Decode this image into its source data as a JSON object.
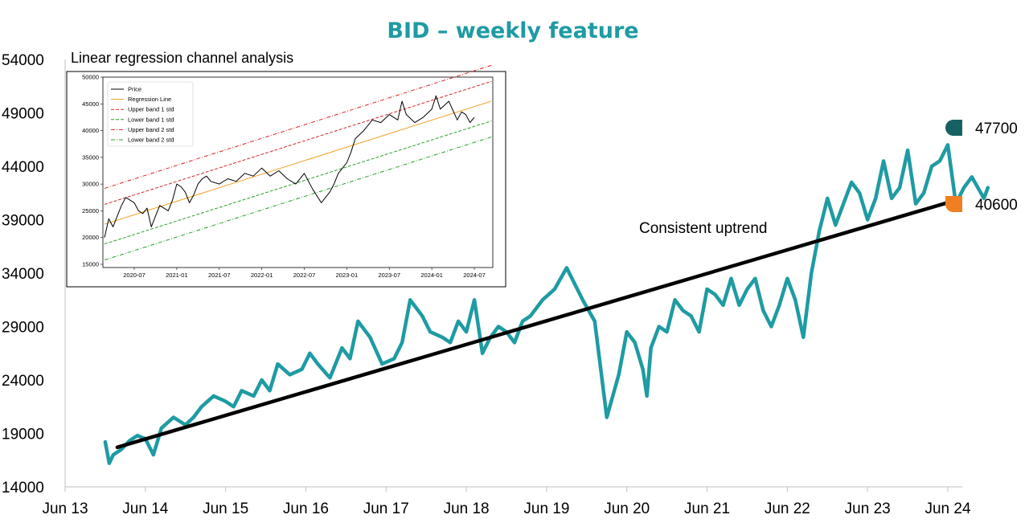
{
  "chart_data": {
    "type": "line",
    "title": "BID – weekly feature",
    "ylim": [
      14000,
      54000
    ],
    "y_ticks": [
      "54000",
      "49000",
      "44000",
      "39000",
      "34000",
      "29000",
      "24000",
      "19000",
      "14000"
    ],
    "x_ticks": [
      "Jun 13",
      "Jun 14",
      "Jun 15",
      "Jun 16",
      "Jun 17",
      "Jun 18",
      "Jun 19",
      "Jun 20",
      "Jun 21",
      "Jun 22",
      "Jun 23",
      "Jun 24"
    ],
    "series": [
      {
        "role": "price",
        "color": "#1e9ba3",
        "x": [
          2013.5,
          2013.55,
          2013.6,
          2013.7,
          2013.8,
          2013.9,
          2014.0,
          2014.1,
          2014.2,
          2014.35,
          2014.5,
          2014.6,
          2014.7,
          2014.85,
          2015.0,
          2015.1,
          2015.2,
          2015.35,
          2015.45,
          2015.55,
          2015.65,
          2015.8,
          2015.95,
          2016.05,
          2016.15,
          2016.3,
          2016.45,
          2016.55,
          2016.65,
          2016.8,
          2016.95,
          2017.1,
          2017.2,
          2017.3,
          2017.45,
          2017.55,
          2017.7,
          2017.8,
          2017.9,
          2018.0,
          2018.1,
          2018.2,
          2018.3,
          2018.4,
          2018.5,
          2018.6,
          2018.7,
          2018.8,
          2018.95,
          2019.1,
          2019.25,
          2019.35,
          2019.45,
          2019.6,
          2019.75,
          2019.9,
          2020.0,
          2020.1,
          2020.2,
          2020.25,
          2020.3,
          2020.4,
          2020.5,
          2020.6,
          2020.7,
          2020.8,
          2020.9,
          2021.0,
          2021.1,
          2021.2,
          2021.3,
          2021.4,
          2021.5,
          2021.6,
          2021.7,
          2021.8,
          2021.9,
          2022.0,
          2022.1,
          2022.2,
          2022.3,
          2022.4,
          2022.45,
          2022.5,
          2022.6,
          2022.7,
          2022.8,
          2022.9,
          2023.0,
          2023.1,
          2023.2,
          2023.3,
          2023.4,
          2023.5,
          2023.6,
          2023.7,
          2023.8,
          2023.9,
          2024.0,
          2024.1,
          2024.2,
          2024.3,
          2024.45,
          2024.5
        ],
        "y": [
          18200,
          16200,
          17000,
          17500,
          18300,
          18800,
          18500,
          17000,
          19500,
          20500,
          19800,
          20500,
          21500,
          22500,
          22000,
          21500,
          23000,
          22500,
          24000,
          23000,
          25500,
          24500,
          25000,
          26500,
          25500,
          24200,
          27000,
          26000,
          29500,
          28000,
          25500,
          26000,
          27500,
          31500,
          30000,
          28500,
          28000,
          27500,
          29500,
          28500,
          31500,
          26500,
          28000,
          29000,
          28500,
          27500,
          29500,
          30000,
          31500,
          32500,
          34500,
          33000,
          31500,
          29500,
          20500,
          24500,
          28500,
          27500,
          25000,
          22500,
          27000,
          29000,
          28500,
          31500,
          30500,
          30000,
          28500,
          32500,
          32000,
          31000,
          33500,
          31000,
          32500,
          33500,
          30500,
          29000,
          31000,
          33500,
          31500,
          28000,
          34000,
          38000,
          39500,
          41000,
          38500,
          40500,
          42500,
          41500,
          39000,
          41000,
          44500,
          41000,
          42000,
          45500,
          40500,
          41500,
          44000,
          44500,
          46000,
          40500,
          42000,
          43000,
          41000,
          42000
        ]
      },
      {
        "role": "trend",
        "color": "#000000",
        "x": [
          2013.65,
          2024.0
        ],
        "y": [
          17700,
          40600
        ]
      }
    ],
    "annotations": {
      "trend_label": "Consistent uptrend",
      "badge_high": {
        "value": "47700",
        "color": "#176063"
      },
      "badge_low": {
        "value": "40600",
        "color": "#f07f22"
      }
    },
    "inset": {
      "title": "Linear regression channel analysis",
      "ylim": [
        15000,
        50000
      ],
      "y_ticks": [
        "50000",
        "45000",
        "40000",
        "35000",
        "30000",
        "25000",
        "20000",
        "15000"
      ],
      "x_ticks": [
        "2020-07",
        "2021-01",
        "2021-07",
        "2022-01",
        "2022-07",
        "2023-01",
        "2023-07",
        "2024-01",
        "2024-07"
      ],
      "legend": [
        {
          "name": "Price",
          "color": "#000000",
          "dash": "solid"
        },
        {
          "name": "Regression Line",
          "color": "#f0a020",
          "dash": "solid"
        },
        {
          "name": "Upper band 1 std",
          "color": "#d62728",
          "dash": "dashed"
        },
        {
          "name": "Lower band 1 std",
          "color": "#2ca02c",
          "dash": "dashed"
        },
        {
          "name": "Upper band 2 std",
          "color": "#d62728",
          "dash": "dashdot"
        },
        {
          "name": "Lower band 2 std",
          "color": "#2ca02c",
          "dash": "dashdot"
        }
      ],
      "regression": {
        "x": [
          2020.15,
          2024.7
        ],
        "y": [
          22500,
          45500
        ]
      },
      "band_offset_1std": 3700,
      "band_offset_2std": 6700,
      "price": {
        "x": [
          2020.15,
          2020.2,
          2020.25,
          2020.3,
          2020.35,
          2020.4,
          2020.45,
          2020.5,
          2020.55,
          2020.6,
          2020.65,
          2020.7,
          2020.75,
          2020.8,
          2020.9,
          2020.95,
          2021.0,
          2021.05,
          2021.1,
          2021.15,
          2021.2,
          2021.25,
          2021.3,
          2021.35,
          2021.4,
          2021.5,
          2021.6,
          2021.7,
          2021.8,
          2021.9,
          2022.0,
          2022.1,
          2022.2,
          2022.3,
          2022.4,
          2022.5,
          2022.6,
          2022.7,
          2022.8,
          2022.85,
          2022.9,
          2023.0,
          2023.05,
          2023.1,
          2023.2,
          2023.3,
          2023.4,
          2023.5,
          2023.6,
          2023.65,
          2023.7,
          2023.8,
          2023.9,
          2024.0,
          2024.05,
          2024.1,
          2024.2,
          2024.3,
          2024.35,
          2024.4,
          2024.45,
          2024.5
        ],
        "y": [
          20000,
          23500,
          22000,
          24000,
          26000,
          27500,
          27000,
          26500,
          25000,
          24500,
          25500,
          22000,
          24000,
          26000,
          25000,
          27000,
          30000,
          29500,
          28500,
          26500,
          28000,
          30000,
          31000,
          31500,
          30500,
          30000,
          31000,
          30500,
          32000,
          31500,
          33000,
          31500,
          32500,
          31000,
          30000,
          32000,
          29000,
          26500,
          28500,
          30000,
          32000,
          34000,
          36000,
          38500,
          40000,
          42000,
          41500,
          43000,
          42000,
          45500,
          43000,
          41500,
          42500,
          44000,
          46500,
          44000,
          45500,
          42000,
          43500,
          43000,
          41500,
          42500
        ]
      }
    }
  }
}
